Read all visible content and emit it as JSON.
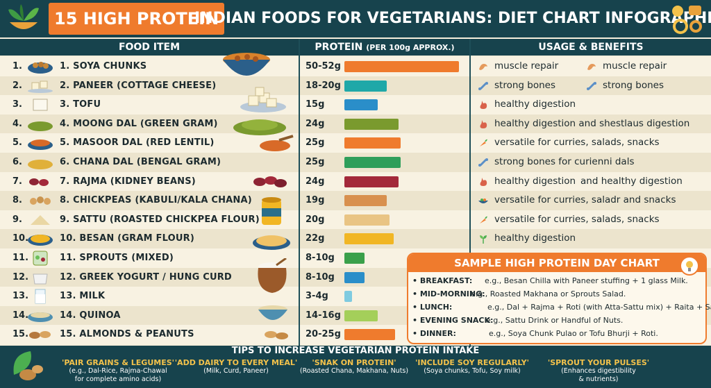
{
  "header": {
    "title_highlight": "15 HIGH PROTEIN",
    "title_rest": "INDIAN FOODS FOR VEGETARIANS: DIET CHART INFOGRAPHIC"
  },
  "columns": {
    "food": "FOOD ITEM",
    "protein_main": "PROTEIN",
    "protein_sub": "(PER 100g APPROX.)",
    "usage": "USAGE & BENEFITS"
  },
  "foods": [
    {
      "num": "1.",
      "name": "1.  SOYA CHUNKS",
      "protein": "50-52g",
      "bar_value": 51,
      "bar_color": "#ef7b2d"
    },
    {
      "num": "2.",
      "name": "2.  PANEER (COTTAGE CHEESE)",
      "protein": "18-20g",
      "bar_value": 19,
      "bar_color": "#1fa8a8"
    },
    {
      "num": "3.",
      "name": "3.  TOFU",
      "protein": "15g",
      "bar_value": 15,
      "bar_color": "#2a8ec9"
    },
    {
      "num": "4.",
      "name": "4. MOONG DAL (GREEN GRAM)",
      "protein": "24g",
      "bar_value": 24,
      "bar_color": "#7a9a2e"
    },
    {
      "num": "5.",
      "name": "5. MASOOR DAL (RED LENTIL)",
      "protein": "25g",
      "bar_value": 25,
      "bar_color": "#ef7b2d"
    },
    {
      "num": "6.",
      "name": "6. CHANA DAL (BENGAL GRAM)",
      "protein": "25g",
      "bar_value": 25,
      "bar_color": "#2e9e5a"
    },
    {
      "num": "7.",
      "name": "7. RAJMA (KIDNEY BEANS)",
      "protein": "24g",
      "bar_value": 24,
      "bar_color": "#a3293a"
    },
    {
      "num": "8.",
      "name": "8. CHICKPEAS (KABULI/KALA CHANA)",
      "protein": "19g",
      "bar_value": 19,
      "bar_color": "#d8904e"
    },
    {
      "num": "9.",
      "name": "9. SATTU (ROASTED CHICKPEA FLOUR)",
      "protein": "20g",
      "bar_value": 20,
      "bar_color": "#e9c484"
    },
    {
      "num": "10.",
      "name": "10. BESAN (GRAM FLOUR)",
      "protein": "22g",
      "bar_value": 22,
      "bar_color": "#f1b624"
    },
    {
      "num": "11.",
      "name": "11. SPROUTS (MIXED)",
      "protein": "8-10g",
      "bar_value": 9,
      "bar_color": "#3aa04a"
    },
    {
      "num": "12.",
      "name": "12. GREEK YOGURT / HUNG CURD",
      "protein": "8-10g",
      "bar_value": 9,
      "bar_color": "#2a8ec9"
    },
    {
      "num": "13.",
      "name": "13. MILK",
      "protein": "3-4g",
      "bar_value": 3.5,
      "bar_color": "#7fcbe0"
    },
    {
      "num": "14.",
      "name": "14. QUINOA",
      "protein": "14-16g",
      "bar_value": 15,
      "bar_color": "#a4cf5a"
    },
    {
      "num": "15.",
      "name": "15. ALMONDS & PEANUTS",
      "protein": "20-25g",
      "bar_value": 22.5,
      "bar_color": "#ef7b2d"
    }
  ],
  "usage": [
    {
      "a": "muscle repair",
      "b": "muscle repair"
    },
    {
      "a": "strong bones",
      "b": "strong bones"
    },
    {
      "a": "healthy digestion"
    },
    {
      "a": "healthy digestion and shestlaus digestion"
    },
    {
      "a": "versatile for curries, salads, snacks"
    },
    {
      "a": "strong bones for curienni dals"
    },
    {
      "a": "healthy digestion",
      "b": "and healthy digestion"
    },
    {
      "a": "versatile for curries, saladr and snacks"
    },
    {
      "a": "versatile for curries, salads, snacks"
    },
    {
      "a": "healthy digestion"
    }
  ],
  "sample_chart": {
    "title": "SAMPLE HIGH PROTEIN DAY CHART",
    "items": [
      {
        "label": "• BREAKFAST:",
        "text": "e.g., Besan Chilla with Paneer stuffing + 1 glass Milk."
      },
      {
        "label": "• MID-MORNING:",
        "text": "e.g., Roasted Makhana or Sprouts Salad."
      },
      {
        "label": "• LUNCH:",
        "text": "e.g., Dal + Rajma + Roti (with Atta-Sattu mix) + Raita + Salad."
      },
      {
        "label": "• EVENING SNACK:",
        "text": "e.g., Sattu Drink or Handful of Nuts."
      },
      {
        "label": "• DINNER:",
        "text": "e.g., Soya Chunk Pulao or Tofu Bhurji + Roti."
      }
    ]
  },
  "tips": {
    "title": "TIPS TO INCREASE VEGETARIAN PROTEIN INTAKE",
    "items": [
      {
        "head": "'PAIR GRAINS & LEGUMES'",
        "d1": "(e.g., Dal-Rice, Rajma-Chawal",
        "d2": "for complete amino acids)"
      },
      {
        "head": "'ADD DAIRY TO EVERY MEAL'",
        "d1": "(Milk, Curd, Paneer)",
        "d2": ""
      },
      {
        "head": "'SNAK ON PROTEIN'",
        "d1": "(Roasted Chana, Makhana, Nuts)",
        "d2": ""
      },
      {
        "head": "'INCLUDE SOY REGULARLY'",
        "d1": "(Soya chunks, Tofu, Soy milk)",
        "d2": ""
      },
      {
        "head": "'SPROUT YOUR PULSES'",
        "d1": "(Enhances digestibility",
        "d2": "& nutrients)"
      }
    ]
  },
  "colors": {
    "header_bg": "#17434d",
    "accent": "#ef7b2d",
    "tip_heading": "#f3c24b",
    "row_alt": "#ece4cd"
  },
  "icons": [
    "leaf-bowl-icon",
    "nutrition-gears-icon",
    "muscle-arm-icon",
    "bone-icon",
    "stomach-icon",
    "food-bowl-icon",
    "sprout-icon",
    "nuts-leaf-icon"
  ]
}
